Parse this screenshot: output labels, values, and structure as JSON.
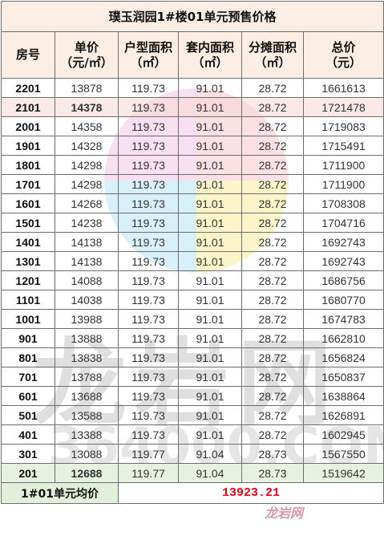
{
  "title": "璞玉润园1#楼01单元预售价格",
  "headers": [
    {
      "line1": "房号",
      "line2": ""
    },
    {
      "line1": "单价",
      "line2": "（元/㎡）"
    },
    {
      "line1": "户型面积",
      "line2": "（㎡）"
    },
    {
      "line1": "套内面积",
      "line2": "（㎡）"
    },
    {
      "line1": "分摊面积",
      "line2": "（㎡）"
    },
    {
      "line1": "总价",
      "line2": "（元）"
    }
  ],
  "rows": [
    {
      "room": "2201",
      "unit_price": "13878",
      "floor_area": "119.73",
      "inner_area": "91.01",
      "shared_area": "28.72",
      "total_price": "1661613",
      "highlight": "none"
    },
    {
      "room": "2101",
      "unit_price": "14378",
      "floor_area": "119.73",
      "inner_area": "91.01",
      "shared_area": "28.72",
      "total_price": "1721478",
      "highlight": "max"
    },
    {
      "room": "2001",
      "unit_price": "14358",
      "floor_area": "119.73",
      "inner_area": "91.01",
      "shared_area": "28.72",
      "total_price": "1719083",
      "highlight": "none"
    },
    {
      "room": "1901",
      "unit_price": "14328",
      "floor_area": "119.73",
      "inner_area": "91.01",
      "shared_area": "28.72",
      "total_price": "1715491",
      "highlight": "none"
    },
    {
      "room": "1801",
      "unit_price": "14298",
      "floor_area": "119.73",
      "inner_area": "91.01",
      "shared_area": "28.72",
      "total_price": "1711900",
      "highlight": "none"
    },
    {
      "room": "1701",
      "unit_price": "14298",
      "floor_area": "119.73",
      "inner_area": "91.01",
      "shared_area": "28.72",
      "total_price": "1711900",
      "highlight": "none"
    },
    {
      "room": "1601",
      "unit_price": "14268",
      "floor_area": "119.73",
      "inner_area": "91.01",
      "shared_area": "28.72",
      "total_price": "1708308",
      "highlight": "none"
    },
    {
      "room": "1501",
      "unit_price": "14238",
      "floor_area": "119.73",
      "inner_area": "91.01",
      "shared_area": "28.72",
      "total_price": "1704716",
      "highlight": "none"
    },
    {
      "room": "1401",
      "unit_price": "14138",
      "floor_area": "119.73",
      "inner_area": "91.01",
      "shared_area": "28.72",
      "total_price": "1692743",
      "highlight": "none"
    },
    {
      "room": "1301",
      "unit_price": "14138",
      "floor_area": "119.73",
      "inner_area": "91.01",
      "shared_area": "28.72",
      "total_price": "1692743",
      "highlight": "none"
    },
    {
      "room": "1201",
      "unit_price": "14088",
      "floor_area": "119.73",
      "inner_area": "91.01",
      "shared_area": "28.72",
      "total_price": "1686756",
      "highlight": "none"
    },
    {
      "room": "1101",
      "unit_price": "14038",
      "floor_area": "119.73",
      "inner_area": "91.01",
      "shared_area": "28.72",
      "total_price": "1680770",
      "highlight": "none"
    },
    {
      "room": "1001",
      "unit_price": "13988",
      "floor_area": "119.73",
      "inner_area": "91.01",
      "shared_area": "28.72",
      "total_price": "1674783",
      "highlight": "none"
    },
    {
      "room": "901",
      "unit_price": "13888",
      "floor_area": "119.73",
      "inner_area": "91.01",
      "shared_area": "28.72",
      "total_price": "1662810",
      "highlight": "none"
    },
    {
      "room": "801",
      "unit_price": "13838",
      "floor_area": "119.73",
      "inner_area": "91.01",
      "shared_area": "28.72",
      "total_price": "1656824",
      "highlight": "none"
    },
    {
      "room": "701",
      "unit_price": "13788",
      "floor_area": "119.73",
      "inner_area": "91.01",
      "shared_area": "28.72",
      "total_price": "1650837",
      "highlight": "none"
    },
    {
      "room": "601",
      "unit_price": "13688",
      "floor_area": "119.73",
      "inner_area": "91.01",
      "shared_area": "28.72",
      "total_price": "1638864",
      "highlight": "none"
    },
    {
      "room": "501",
      "unit_price": "13588",
      "floor_area": "119.73",
      "inner_area": "91.01",
      "shared_area": "28.72",
      "total_price": "1626891",
      "highlight": "none"
    },
    {
      "room": "401",
      "unit_price": "13388",
      "floor_area": "119.73",
      "inner_area": "91.01",
      "shared_area": "28.72",
      "total_price": "1602945",
      "highlight": "none"
    },
    {
      "room": "301",
      "unit_price": "13088",
      "floor_area": "119.77",
      "inner_area": "91.04",
      "shared_area": "28.73",
      "total_price": "1567550",
      "highlight": "none"
    },
    {
      "room": "201",
      "unit_price": "12688",
      "floor_area": "119.77",
      "inner_area": "91.04",
      "shared_area": "28.73",
      "total_price": "1519642",
      "highlight": "min"
    }
  ],
  "average": {
    "label": "1#01单元均价",
    "value": "13923.21"
  },
  "watermark": {
    "brand": "龙岩网",
    "number": "364000.COM",
    "corner": "龙岩网"
  },
  "colors": {
    "header_bg": "#fdeee4",
    "max_row_bg": "#f7d6d6",
    "min_row_bg": "#e2f0d9",
    "average_value": "#e0001b"
  }
}
